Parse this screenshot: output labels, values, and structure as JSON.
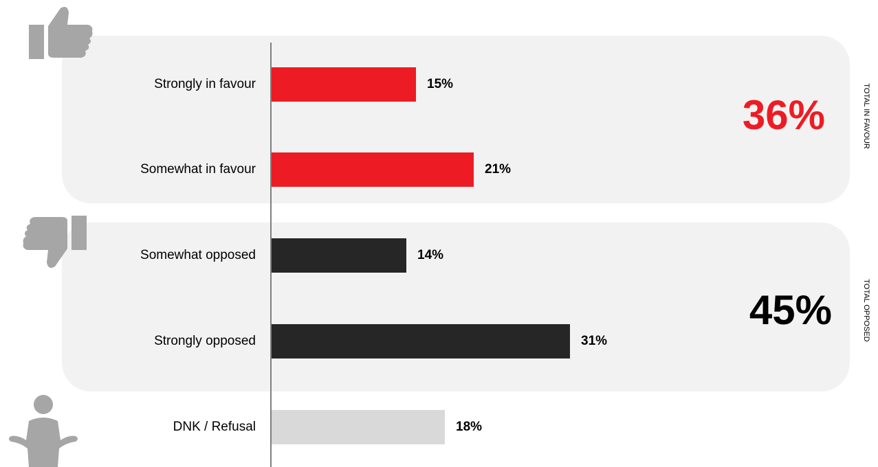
{
  "chart_data": {
    "type": "bar",
    "orientation": "horizontal",
    "categories": [
      "Strongly in favour",
      "Somewhat in favour",
      "Somewhat opposed",
      "Strongly opposed",
      "DNK / Refusal"
    ],
    "values": [
      15,
      21,
      14,
      31,
      18
    ],
    "value_labels": [
      "15%",
      "21%",
      "14%",
      "31%",
      "18%"
    ],
    "bar_colors": [
      "#ed1c24",
      "#ed1c24",
      "#262626",
      "#262626",
      "#d9d9d9"
    ],
    "xlim": [
      0,
      31
    ],
    "groups": [
      {
        "label": "TOTAL IN FAVOUR",
        "total": "36%",
        "total_color": "#ed1c24",
        "icon": "thumbs-up-icon"
      },
      {
        "label": "TOTAL OPPOSED",
        "total": "45%",
        "total_color": "#000000",
        "icon": "thumbs-down-icon"
      },
      {
        "icon": "shrug-person-icon"
      }
    ],
    "grid": false,
    "legend": "none"
  }
}
